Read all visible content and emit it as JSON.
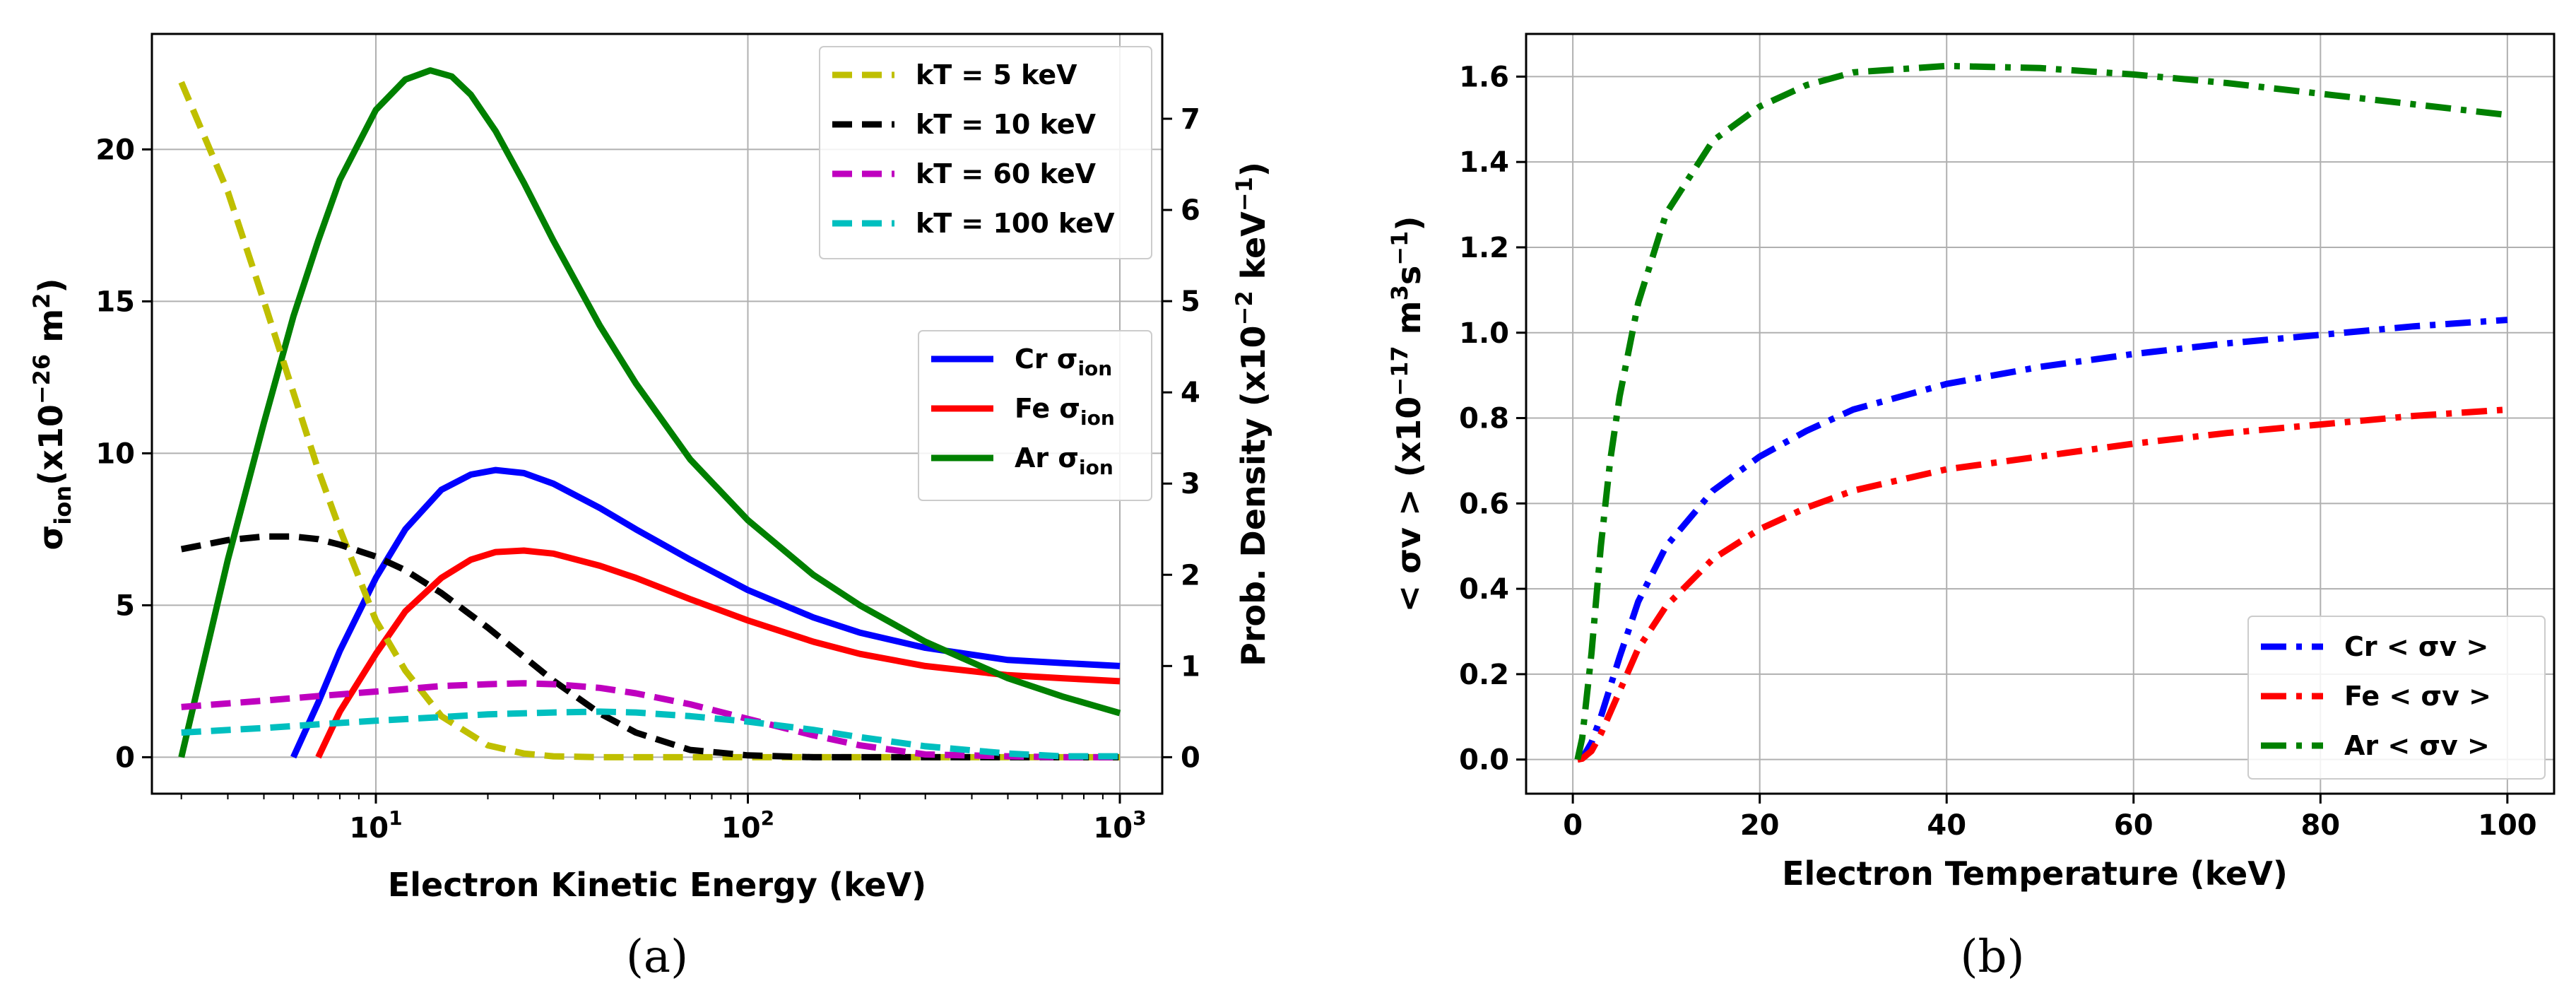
{
  "chart_data": [
    {
      "panel": "(a)",
      "type": "line",
      "xlabel": "Electron Kinetic Energy (keV)",
      "xscale": "log",
      "xlim": [
        2.5,
        1300
      ],
      "x_ticks": [
        {
          "value": 10,
          "base": "10",
          "exp": "1"
        },
        {
          "value": 100,
          "base": "10",
          "exp": "2"
        },
        {
          "value": 1000,
          "base": "10",
          "exp": "3"
        }
      ],
      "left_axis": {
        "label_main": "σ",
        "label_sub": "ion",
        "label_rest": "(x10",
        "label_exp": "−26",
        "label_unit": " m",
        "label_unit_exp": "2",
        "label_close": ")",
        "ylim": [
          -1.2,
          23.8
        ],
        "ticks": [
          0,
          5,
          10,
          15,
          20
        ]
      },
      "right_axis": {
        "label_text": "Prob. Density (x10",
        "label_exp1": "−2",
        "label_unit": " keV",
        "label_exp2": "−1",
        "label_close": ")",
        "ylim": [
          -0.4,
          7.93
        ],
        "ticks": [
          0,
          1,
          2,
          3,
          4,
          5,
          6,
          7
        ]
      },
      "series": [
        {
          "name": "Cr σion",
          "label": "Cr",
          "sub": "ion",
          "axis": "left",
          "style": "solid",
          "color": "#0000ff",
          "x": [
            6,
            7,
            8,
            10,
            12,
            15,
            18,
            21,
            25,
            30,
            40,
            50,
            70,
            100,
            150,
            200,
            300,
            500,
            700,
            1000
          ],
          "y": [
            0,
            1.8,
            3.5,
            5.9,
            7.5,
            8.8,
            9.3,
            9.45,
            9.35,
            9.0,
            8.2,
            7.5,
            6.5,
            5.5,
            4.6,
            4.1,
            3.6,
            3.2,
            3.1,
            3.0
          ]
        },
        {
          "name": "Fe σion",
          "label": "Fe",
          "sub": "ion",
          "axis": "left",
          "style": "solid",
          "color": "#ff0000",
          "x": [
            7,
            8,
            10,
            12,
            15,
            18,
            21,
            25,
            30,
            40,
            50,
            70,
            100,
            150,
            200,
            300,
            500,
            700,
            1000
          ],
          "y": [
            0,
            1.5,
            3.4,
            4.8,
            5.9,
            6.5,
            6.75,
            6.8,
            6.7,
            6.3,
            5.9,
            5.2,
            4.5,
            3.8,
            3.4,
            3.0,
            2.7,
            2.6,
            2.5
          ]
        },
        {
          "name": "Ar σion",
          "label": "Ar",
          "sub": "ion",
          "axis": "left",
          "style": "solid",
          "color": "#008000",
          "x": [
            3,
            4,
            5,
            6,
            7,
            8,
            10,
            12,
            14,
            16,
            18,
            21,
            25,
            30,
            40,
            50,
            70,
            100,
            150,
            200,
            300,
            500,
            700,
            1000
          ],
          "y": [
            0,
            6.5,
            11.0,
            14.5,
            17.0,
            19.0,
            21.3,
            22.3,
            22.6,
            22.4,
            21.8,
            20.6,
            18.9,
            17.0,
            14.2,
            12.3,
            9.8,
            7.8,
            6.0,
            5.0,
            3.8,
            2.6,
            2.0,
            1.45
          ]
        },
        {
          "name": "kT = 5 keV",
          "kt": "5",
          "axis": "right",
          "style": "dashed",
          "color": "#bfbf00",
          "x": [
            3,
            4,
            5,
            6,
            7,
            8,
            10,
            12,
            15,
            20,
            25,
            30,
            40,
            50,
            100,
            1000
          ],
          "y": [
            7.4,
            6.2,
            5.0,
            4.0,
            3.15,
            2.5,
            1.5,
            0.95,
            0.45,
            0.13,
            0.04,
            0.01,
            0,
            0,
            0,
            0
          ]
        },
        {
          "name": "kT = 10 keV",
          "kt": "10",
          "axis": "right",
          "style": "dashed",
          "color": "#000000",
          "x": [
            3,
            4,
            5,
            6,
            7,
            8,
            10,
            12,
            15,
            20,
            25,
            30,
            40,
            50,
            70,
            100,
            150,
            200,
            300,
            1000
          ],
          "y": [
            2.28,
            2.38,
            2.42,
            2.42,
            2.39,
            2.33,
            2.2,
            2.05,
            1.8,
            1.42,
            1.1,
            0.84,
            0.48,
            0.27,
            0.08,
            0.02,
            0,
            0,
            0,
            0
          ]
        },
        {
          "name": "kT = 60 keV",
          "kt": "60",
          "axis": "right",
          "style": "dashed",
          "color": "#bf00bf",
          "x": [
            3,
            5,
            7,
            10,
            15,
            20,
            25,
            30,
            40,
            50,
            70,
            100,
            150,
            200,
            300,
            500,
            700,
            1000
          ],
          "y": [
            0.55,
            0.62,
            0.67,
            0.72,
            0.78,
            0.8,
            0.81,
            0.8,
            0.76,
            0.7,
            0.58,
            0.42,
            0.24,
            0.13,
            0.03,
            0.01,
            0,
            0
          ]
        },
        {
          "name": "kT = 100 keV",
          "kt": "100",
          "axis": "right",
          "style": "dashed",
          "color": "#00bfbf",
          "x": [
            3,
            5,
            7,
            10,
            15,
            20,
            30,
            40,
            50,
            70,
            100,
            150,
            200,
            300,
            500,
            700,
            1000
          ],
          "y": [
            0.27,
            0.32,
            0.36,
            0.4,
            0.44,
            0.47,
            0.49,
            0.5,
            0.49,
            0.45,
            0.39,
            0.3,
            0.22,
            0.12,
            0.04,
            0.01,
            0.01
          ]
        }
      ]
    },
    {
      "panel": "(b)",
      "type": "line",
      "xlabel": "Electron Temperature (keV)",
      "xlim": [
        -5,
        105
      ],
      "ylim": [
        -0.08,
        1.7
      ],
      "x_ticks": [
        0,
        20,
        40,
        60,
        80,
        100
      ],
      "y_ticks": [
        "0.0",
        "0.2",
        "0.4",
        "0.6",
        "0.8",
        "1.0",
        "1.2",
        "1.4",
        "1.6"
      ],
      "ylabel": {
        "pre": "< σv >  (x10",
        "exp1": "−17",
        "mid": " m",
        "exp2": "3",
        "mid2": "s",
        "exp3": "−1",
        "close": ")"
      },
      "series": [
        {
          "name": "Cr < σv >",
          "axis": "left",
          "style": "dashdot",
          "color": "#0000ff",
          "x": [
            0.5,
            1,
            2,
            3,
            4,
            5,
            7,
            10,
            15,
            20,
            25,
            30,
            40,
            50,
            60,
            70,
            80,
            90,
            100
          ],
          "y": [
            0,
            0.003,
            0.04,
            0.1,
            0.17,
            0.24,
            0.37,
            0.5,
            0.63,
            0.71,
            0.77,
            0.82,
            0.88,
            0.92,
            0.95,
            0.975,
            0.995,
            1.015,
            1.03
          ]
        },
        {
          "name": "Fe < σv >",
          "axis": "left",
          "style": "dashdot",
          "color": "#ff0000",
          "x": [
            0.5,
            1,
            2,
            3,
            4,
            5,
            7,
            10,
            15,
            20,
            25,
            30,
            40,
            50,
            60,
            70,
            80,
            90,
            100
          ],
          "y": [
            0,
            0.002,
            0.02,
            0.06,
            0.11,
            0.16,
            0.26,
            0.36,
            0.47,
            0.54,
            0.59,
            0.63,
            0.68,
            0.71,
            0.74,
            0.765,
            0.785,
            0.805,
            0.82
          ]
        },
        {
          "name": "Ar < σv >",
          "axis": "left",
          "style": "dashdot",
          "color": "#008000",
          "x": [
            0.5,
            1,
            1.5,
            2,
            3,
            4,
            5,
            7,
            10,
            15,
            20,
            25,
            30,
            40,
            50,
            60,
            70,
            80,
            90,
            100
          ],
          "y": [
            0,
            0.05,
            0.15,
            0.25,
            0.5,
            0.7,
            0.85,
            1.07,
            1.28,
            1.45,
            1.53,
            1.58,
            1.61,
            1.625,
            1.62,
            1.605,
            1.585,
            1.56,
            1.535,
            1.51
          ]
        }
      ]
    }
  ],
  "captions": {
    "a": "(a)",
    "b": "(b)"
  },
  "legend_a_kt": {
    "prefix": "kT = ",
    "unit": " keV"
  },
  "legend_sub": "ion"
}
